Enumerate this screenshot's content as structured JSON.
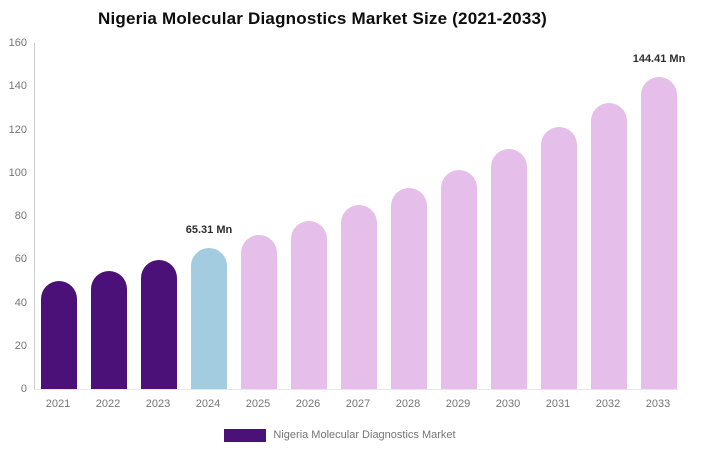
{
  "chart_data": {
    "type": "bar",
    "title": "Nigeria Molecular Diagnostics Market Size (2021-2033)",
    "categories": [
      "2021",
      "2022",
      "2023",
      "2024",
      "2025",
      "2026",
      "2027",
      "2028",
      "2029",
      "2030",
      "2031",
      "2032",
      "2033"
    ],
    "values": [
      50.0,
      54.8,
      59.8,
      65.31,
      71.3,
      77.9,
      85.1,
      92.9,
      101.5,
      110.8,
      121.0,
      132.2,
      144.41
    ],
    "unit": "Mn",
    "xlabel": "",
    "ylabel": "",
    "ylim": [
      0,
      160
    ],
    "yticks": [
      0,
      20,
      40,
      60,
      80,
      100,
      120,
      140,
      160
    ],
    "grid": false,
    "bar_colors": [
      "#4B1178",
      "#4B1178",
      "#4B1178",
      "#A3CCE0",
      "#E5BEE9",
      "#E5BEE9",
      "#E5BEE9",
      "#E5BEE9",
      "#E5BEE9",
      "#E5BEE9",
      "#E5BEE9",
      "#E5BEE9",
      "#E5BEE9"
    ],
    "segment_colors": {
      "historical": "#4B1178",
      "base_year": "#A3CCE0",
      "forecast": "#E5BEE9"
    },
    "data_labels": [
      {
        "category": "2024",
        "text": "65.31 Mn"
      },
      {
        "category": "2033",
        "text": "144.41 Mn"
      }
    ],
    "legend": {
      "position": "bottom",
      "items": [
        {
          "label": "Nigeria Molecular Diagnostics Market",
          "color": "#4B1178"
        }
      ]
    }
  }
}
